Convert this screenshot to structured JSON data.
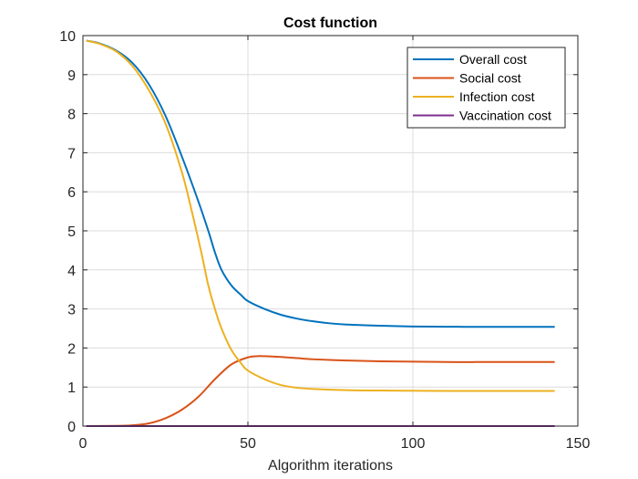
{
  "chart_data": {
    "type": "line",
    "title": "Cost function",
    "xlabel": "Algorithm iterations",
    "ylabel": "",
    "xlim": [
      0,
      150
    ],
    "ylim": [
      0,
      10
    ],
    "xticks": [
      0,
      50,
      100,
      150
    ],
    "yticks": [
      0,
      1,
      2,
      3,
      4,
      5,
      6,
      7,
      8,
      9,
      10
    ],
    "grid": true,
    "legend_position": "top-right",
    "series": [
      {
        "name": "Overall cost",
        "color": "#0072BD",
        "x": [
          1,
          5,
          10,
          15,
          20,
          25,
          30,
          35,
          38,
          40,
          42,
          45,
          48,
          50,
          55,
          60,
          65,
          70,
          75,
          80,
          90,
          100,
          110,
          120,
          130,
          143
        ],
        "y": [
          9.87,
          9.8,
          9.62,
          9.3,
          8.75,
          7.95,
          6.9,
          5.75,
          5.0,
          4.45,
          4.0,
          3.6,
          3.35,
          3.2,
          3.0,
          2.85,
          2.75,
          2.68,
          2.63,
          2.6,
          2.57,
          2.55,
          2.545,
          2.54,
          2.54,
          2.54
        ]
      },
      {
        "name": "Social cost",
        "color": "#D95319",
        "x": [
          1,
          10,
          15,
          20,
          25,
          30,
          35,
          40,
          45,
          50,
          53,
          55,
          60,
          65,
          70,
          80,
          90,
          100,
          110,
          120,
          130,
          143
        ],
        "y": [
          0.0,
          0.005,
          0.02,
          0.07,
          0.2,
          0.42,
          0.75,
          1.2,
          1.58,
          1.76,
          1.79,
          1.79,
          1.77,
          1.74,
          1.71,
          1.68,
          1.66,
          1.65,
          1.64,
          1.64,
          1.64,
          1.64
        ]
      },
      {
        "name": "Infection cost",
        "color": "#EDB120",
        "x": [
          1,
          5,
          10,
          15,
          20,
          25,
          30,
          33,
          36,
          38,
          40,
          42,
          45,
          48,
          50,
          55,
          60,
          65,
          70,
          80,
          90,
          100,
          110,
          120,
          130,
          143
        ],
        "y": [
          9.87,
          9.79,
          9.6,
          9.22,
          8.6,
          7.75,
          6.5,
          5.5,
          4.4,
          3.6,
          3.0,
          2.5,
          1.95,
          1.6,
          1.42,
          1.2,
          1.05,
          0.98,
          0.95,
          0.92,
          0.91,
          0.905,
          0.9,
          0.9,
          0.9,
          0.9
        ]
      },
      {
        "name": "Vaccination cost",
        "color": "#7E2F8E",
        "x": [
          1,
          143
        ],
        "y": [
          0.0,
          0.0
        ]
      }
    ]
  }
}
